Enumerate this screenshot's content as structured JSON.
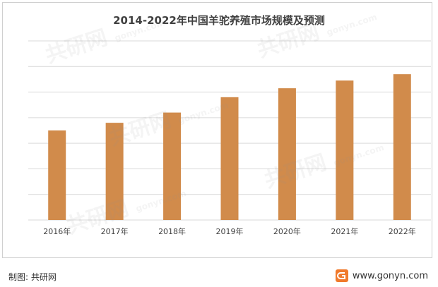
{
  "chart_data": {
    "type": "bar",
    "title": "2014-2022年中国羊驼养殖市场规模及预测",
    "categories": [
      "2016年",
      "2017年",
      "2018年",
      "2019年",
      "2020年",
      "2021年",
      "2022年"
    ],
    "values": [
      3.5,
      3.8,
      4.2,
      4.8,
      5.15,
      5.45,
      5.7
    ],
    "ylim": [
      0,
      7
    ],
    "grid": true,
    "bar_color": "#d18b4b"
  },
  "footer": {
    "source": "制图: 共研网",
    "url": "www.gonyn.com"
  },
  "watermark": {
    "text": "共研网",
    "latin": "gonyn.com"
  },
  "colors": {
    "grid": "#d9d9d9",
    "title": "#404040",
    "logo": "#f07a2c"
  }
}
